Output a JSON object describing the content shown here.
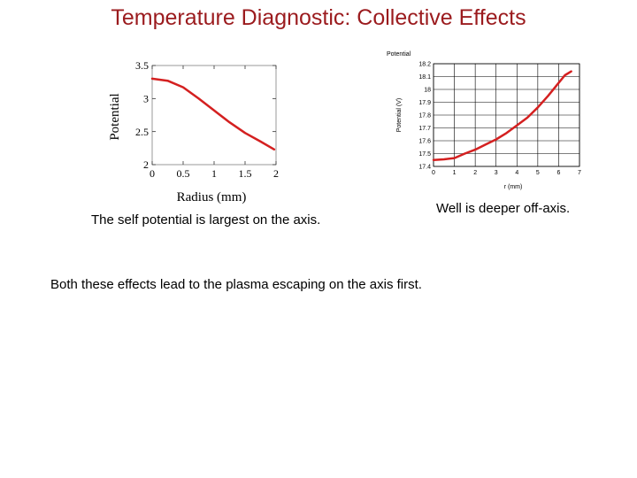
{
  "slide": {
    "title": "Temperature Diagnostic: Collective Effects",
    "caption_left": "The self potential is largest on the axis.",
    "caption_right": "Well is deeper off-axis.",
    "caption_bottom": "Both these effects lead to the plasma escaping on the axis first."
  },
  "colors": {
    "title": "#9b1b1e",
    "curve": "#d42020",
    "frame": "#999999",
    "grid": "#000000"
  },
  "chart_data": [
    {
      "type": "line",
      "title": "",
      "xlabel": "Radius (mm)",
      "ylabel": "Potential",
      "xlim": [
        0,
        2
      ],
      "ylim": [
        2,
        3.5
      ],
      "xticks": [
        0,
        0.5,
        1,
        1.5,
        2
      ],
      "xtick_labels": [
        "0",
        "0.5",
        "1",
        "1.5",
        "2"
      ],
      "yticks": [
        2,
        2.5,
        3,
        3.5
      ],
      "ytick_labels": [
        "2",
        "2.5",
        "3",
        "3.5"
      ],
      "grid": false,
      "series": [
        {
          "x": [
            0,
            0.25,
            0.5,
            0.75,
            1,
            1.25,
            1.5,
            1.75,
            1.97
          ],
          "y": [
            3.3,
            3.27,
            3.17,
            3.0,
            2.82,
            2.64,
            2.48,
            2.35,
            2.23
          ]
        }
      ]
    },
    {
      "type": "line",
      "title": "Potential",
      "xlabel": "r (mm)",
      "ylabel": "Potential (V)",
      "xlim": [
        0,
        7
      ],
      "ylim": [
        17.4,
        18.2
      ],
      "xticks": [
        0,
        1,
        2,
        3,
        4,
        5,
        6,
        7
      ],
      "xtick_labels": [
        "0",
        "1",
        "2",
        "3",
        "4",
        "5",
        "6",
        "7"
      ],
      "yticks": [
        17.4,
        17.5,
        17.6,
        17.7,
        17.8,
        17.9,
        18.0,
        18.1,
        18.2
      ],
      "ytick_labels": [
        "17.4",
        "17.5",
        "17.6",
        "17.7",
        "17.8",
        "17.9",
        "18",
        "18.1",
        "18.2"
      ],
      "grid": true,
      "series": [
        {
          "x": [
            0,
            0.5,
            1,
            1.5,
            2,
            2.5,
            3,
            3.5,
            4,
            4.5,
            5,
            5.5,
            6,
            6.3,
            6.6
          ],
          "y": [
            17.45,
            17.455,
            17.465,
            17.5,
            17.53,
            17.57,
            17.61,
            17.66,
            17.72,
            17.78,
            17.86,
            17.95,
            18.05,
            18.11,
            18.14
          ]
        }
      ]
    }
  ]
}
